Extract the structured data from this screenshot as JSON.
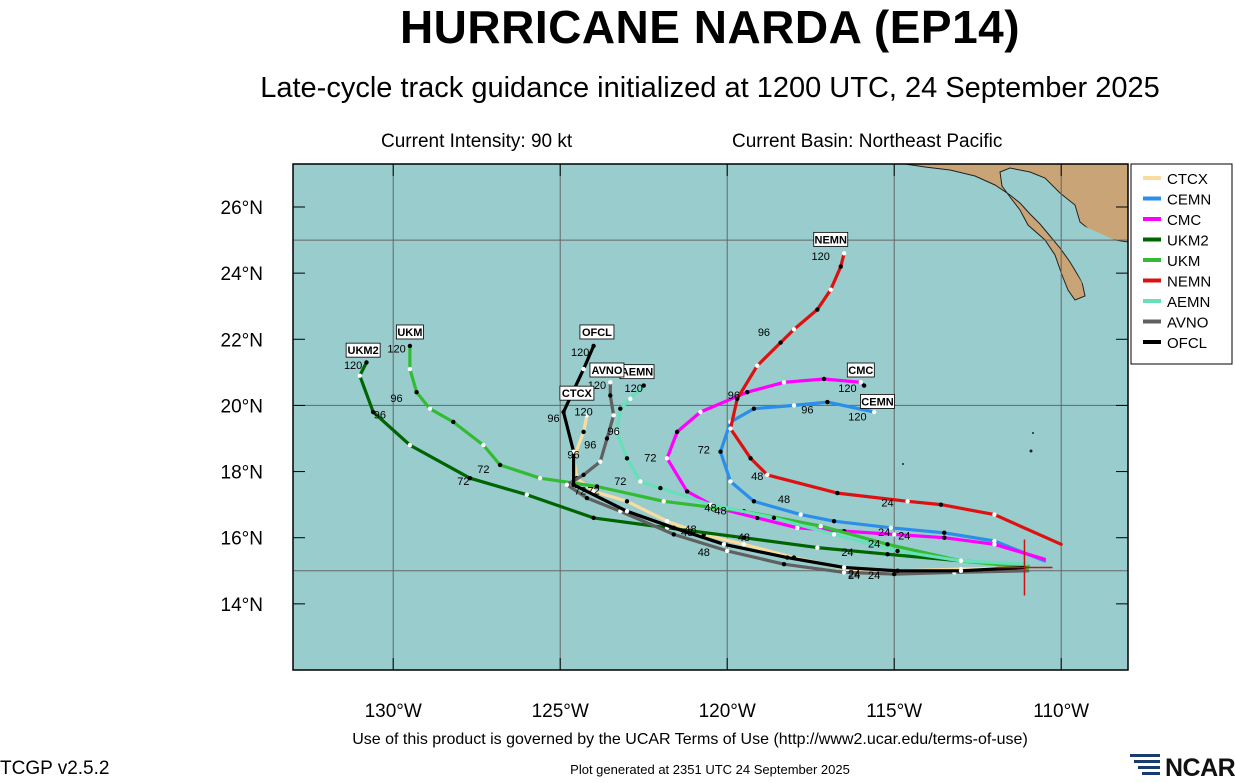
{
  "header": {
    "title": "HURRICANE NARDA (EP14)",
    "subtitle": "Late-cycle track guidance initialized at 1200 UTC, 24 September 2025",
    "intensity": "Current Intensity: 90 kt",
    "basin": "Current Basin: Northeast Pacific"
  },
  "footer": {
    "terms": "Use of this product is governed by the UCAR Terms of Use (http://www2.ucar.edu/terms-of-use)",
    "version": "TCGP v2.5.2",
    "generated": "Plot generated at 2351 UTC   24 September 2025",
    "logo_text": "NCAR"
  },
  "chart_data": {
    "type": "map",
    "lon_range": [
      -133,
      -108
    ],
    "lat_range": [
      12,
      27.3
    ],
    "x_ticks": [
      {
        "lon": -130,
        "label": "130°W"
      },
      {
        "lon": -125,
        "label": "125°W"
      },
      {
        "lon": -120,
        "label": "120°W"
      },
      {
        "lon": -115,
        "label": "115°W"
      },
      {
        "lon": -110,
        "label": "110°W"
      }
    ],
    "y_ticks": [
      {
        "lat": 14,
        "label": "14°N"
      },
      {
        "lat": 16,
        "label": "16°N"
      },
      {
        "lat": 18,
        "label": "18°N"
      },
      {
        "lat": 20,
        "label": "20°N"
      },
      {
        "lat": 22,
        "label": "22°N"
      },
      {
        "lat": 24,
        "label": "24°N"
      },
      {
        "lat": 26,
        "label": "26°N"
      }
    ],
    "grid_lons": [
      -130,
      -125,
      -120,
      -115,
      -110
    ],
    "grid_lats": [
      15,
      20,
      25
    ],
    "grid": true,
    "ocean_color": "#99cccc",
    "land_color": "#c8a476",
    "legend_placement": "right",
    "current_position": {
      "lon": -111.1,
      "lat": 15.1
    },
    "series": [
      {
        "name": "CTCX",
        "color": "#fadca0",
        "points": [
          [
            -111.1,
            15.1
          ],
          [
            -113,
            15.05
          ],
          [
            -114.9,
            15
          ],
          [
            -116.4,
            15.05
          ],
          [
            -118,
            15.4
          ],
          [
            -119.5,
            15.8
          ],
          [
            -120.7,
            16.1
          ],
          [
            -121.8,
            16.5
          ],
          [
            -123,
            17.1
          ],
          [
            -124,
            17.4
          ],
          [
            -124.5,
            17.8
          ],
          [
            -124.6,
            18.4
          ],
          [
            -124.3,
            19.2
          ],
          [
            -124.2,
            19.7
          ]
        ],
        "hours": [
          {
            "t": "48",
            "lon": -119.5,
            "lat": 15.9
          },
          {
            "t": "72",
            "lon": -124,
            "lat": 17.3
          },
          {
            "t": "96",
            "lon": -124.6,
            "lat": 18.4
          },
          {
            "t": "120",
            "lon": -124.3,
            "lat": 19.7
          }
        ],
        "label": "CTCX",
        "label_pos": {
          "lon": -124.5,
          "lat": 20.25
        }
      },
      {
        "name": "CEMN",
        "color": "#2b8ee8",
        "points": [
          [
            -110.5,
            15.3
          ],
          [
            -112,
            15.9
          ],
          [
            -113.5,
            16.15
          ],
          [
            -115.1,
            16.3
          ],
          [
            -116.8,
            16.5
          ],
          [
            -117.8,
            16.7
          ],
          [
            -119.2,
            17.1
          ],
          [
            -119.9,
            17.7
          ],
          [
            -120.2,
            18.6
          ],
          [
            -119.9,
            19.5
          ],
          [
            -119.2,
            19.9
          ],
          [
            -118,
            20
          ],
          [
            -117,
            20.1
          ],
          [
            -115.6,
            19.8
          ]
        ],
        "hours": [
          {
            "t": "24",
            "lon": -115.3,
            "lat": 16.05
          },
          {
            "t": "48",
            "lon": -118.3,
            "lat": 17.05
          },
          {
            "t": "72",
            "lon": -120.7,
            "lat": 18.55
          },
          {
            "t": "96",
            "lon": -117.6,
            "lat": 19.75
          },
          {
            "t": "120",
            "lon": -116.1,
            "lat": 19.55
          }
        ],
        "label": "CEMN",
        "label_pos": {
          "lon": -115.5,
          "lat": 20.0
        }
      },
      {
        "name": "CMC",
        "color": "#ff00ff",
        "points": [
          [
            -110.5,
            15.35
          ],
          [
            -112,
            15.8
          ],
          [
            -113.5,
            16
          ],
          [
            -115,
            16.1
          ],
          [
            -116.5,
            16.2
          ],
          [
            -117.9,
            16.3
          ],
          [
            -119.1,
            16.6
          ],
          [
            -120.3,
            16.9
          ],
          [
            -121.2,
            17.4
          ],
          [
            -121.8,
            18.4
          ],
          [
            -121.5,
            19.2
          ],
          [
            -120.8,
            19.8
          ],
          [
            -119.4,
            20.4
          ],
          [
            -118.3,
            20.7
          ],
          [
            -117.1,
            20.8
          ],
          [
            -116,
            20.7
          ],
          [
            -115.9,
            20.6
          ]
        ],
        "hours": [
          {
            "t": "24",
            "lon": -114.7,
            "lat": 15.95
          },
          {
            "t": "48",
            "lon": -120.5,
            "lat": 16.8
          },
          {
            "t": "72",
            "lon": -122.3,
            "lat": 18.3
          },
          {
            "t": "96",
            "lon": -119.8,
            "lat": 20.2
          },
          {
            "t": "120",
            "lon": -116.4,
            "lat": 20.4
          }
        ],
        "label": "CMC",
        "label_pos": {
          "lon": -116.0,
          "lat": 20.95
        }
      },
      {
        "name": "UKM2",
        "color": "#006400",
        "points": [
          [
            -111,
            15.15
          ],
          [
            -113,
            15.3
          ],
          [
            -115.2,
            15.5
          ],
          [
            -117.3,
            15.7
          ],
          [
            -119.5,
            16
          ],
          [
            -121.8,
            16.3
          ],
          [
            -124,
            16.6
          ],
          [
            -126,
            17.3
          ],
          [
            -127.7,
            17.8
          ],
          [
            -129.5,
            18.8
          ],
          [
            -130.6,
            19.8
          ],
          [
            -131,
            20.9
          ],
          [
            -130.8,
            21.3
          ]
        ],
        "hours": [
          {
            "t": "24",
            "lon": -116.4,
            "lat": 15.45
          },
          {
            "t": "48",
            "lon": -121.2,
            "lat": 16.05
          },
          {
            "t": "72",
            "lon": -127.9,
            "lat": 17.6
          },
          {
            "t": "96",
            "lon": -130.4,
            "lat": 19.6
          },
          {
            "t": "120",
            "lon": -131.2,
            "lat": 21.1
          }
        ],
        "label": "UKM2",
        "label_pos": {
          "lon": -130.9,
          "lat": 21.55
        }
      },
      {
        "name": "UKM",
        "color": "#33bb33",
        "points": [
          [
            -111,
            15.1
          ],
          [
            -113,
            15.3
          ],
          [
            -115.2,
            15.8
          ],
          [
            -117.2,
            16.35
          ],
          [
            -119.5,
            16.8
          ],
          [
            -121.9,
            17.1
          ],
          [
            -123.9,
            17.55
          ],
          [
            -125.6,
            17.8
          ],
          [
            -126.8,
            18.2
          ],
          [
            -127.3,
            18.8
          ],
          [
            -128.2,
            19.5
          ],
          [
            -128.9,
            19.9
          ],
          [
            -129.3,
            20.4
          ],
          [
            -129.5,
            21.1
          ],
          [
            -129.5,
            21.8
          ]
        ],
        "hours": [
          {
            "t": "24",
            "lon": -115.6,
            "lat": 15.7
          },
          {
            "t": "48",
            "lon": -120.2,
            "lat": 16.7
          },
          {
            "t": "72",
            "lon": -127.3,
            "lat": 17.95
          },
          {
            "t": "96",
            "lon": -129.9,
            "lat": 20.1
          },
          {
            "t": "120",
            "lon": -129.9,
            "lat": 21.6
          }
        ],
        "label": "UKM",
        "label_pos": {
          "lon": -129.5,
          "lat": 22.1
        }
      },
      {
        "name": "NEMN",
        "color": "#dd1111",
        "points": [
          [
            -110,
            15.8
          ],
          [
            -112,
            16.7
          ],
          [
            -113.6,
            17
          ],
          [
            -114.6,
            17.1
          ],
          [
            -116.7,
            17.35
          ],
          [
            -118.8,
            17.9
          ],
          [
            -119.3,
            18.4
          ],
          [
            -119.9,
            19.3
          ],
          [
            -119.7,
            20.2
          ],
          [
            -119.1,
            21.2
          ],
          [
            -118.4,
            21.9
          ],
          [
            -118,
            22.3
          ],
          [
            -117.3,
            22.9
          ],
          [
            -116.9,
            23.5
          ],
          [
            -116.6,
            24.2
          ],
          [
            -116.5,
            24.6
          ]
        ],
        "hours": [
          {
            "t": "24",
            "lon": -115.2,
            "lat": 16.95
          },
          {
            "t": "48",
            "lon": -119.1,
            "lat": 17.75
          },
          {
            "t": "96",
            "lon": -118.9,
            "lat": 22.1
          },
          {
            "t": "120",
            "lon": -117.2,
            "lat": 24.4
          }
        ],
        "label": "NEMN",
        "label_pos": {
          "lon": -116.9,
          "lat": 24.9
        }
      },
      {
        "name": "AEMN",
        "color": "#66e0b8",
        "points": [
          [
            -111,
            15.2
          ],
          [
            -113,
            15.3
          ],
          [
            -114.9,
            15.6
          ],
          [
            -116.8,
            16.1
          ],
          [
            -118.6,
            16.6
          ],
          [
            -120.5,
            17
          ],
          [
            -122,
            17.5
          ],
          [
            -122.6,
            17.7
          ],
          [
            -123,
            18.4
          ],
          [
            -123.3,
            19.2
          ],
          [
            -123.2,
            19.9
          ],
          [
            -122.9,
            20.2
          ],
          [
            -122.5,
            20.6
          ]
        ],
        "hours": [
          {
            "t": "72",
            "lon": -123.2,
            "lat": 17.6
          },
          {
            "t": "96",
            "lon": -123.4,
            "lat": 19.1
          },
          {
            "t": "120",
            "lon": -122.8,
            "lat": 20.4
          }
        ],
        "label": "AEMN",
        "label_pos": {
          "lon": -122.7,
          "lat": 20.9
        }
      },
      {
        "name": "AVNO",
        "color": "#606060",
        "points": [
          [
            -111,
            15
          ],
          [
            -113.2,
            14.95
          ],
          [
            -115,
            14.9
          ],
          [
            -116.5,
            14.95
          ],
          [
            -118.3,
            15.2
          ],
          [
            -120,
            15.6
          ],
          [
            -121.6,
            16.1
          ],
          [
            -123.2,
            16.8
          ],
          [
            -124.2,
            17.2
          ],
          [
            -124.8,
            17.6
          ],
          [
            -124.3,
            17.9
          ],
          [
            -123.8,
            18.3
          ],
          [
            -123.6,
            19
          ],
          [
            -123.4,
            19.7
          ],
          [
            -123.5,
            20.3
          ],
          [
            -123.5,
            20.7
          ]
        ],
        "hours": [
          {
            "t": "24",
            "lon": -116.2,
            "lat": 14.8
          },
          {
            "t": "48",
            "lon": -120.7,
            "lat": 15.45
          },
          {
            "t": "96",
            "lon": -124.1,
            "lat": 18.7
          },
          {
            "t": "120",
            "lon": -123.9,
            "lat": 20.5
          }
        ],
        "label": "AVNO",
        "label_pos": {
          "lon": -123.6,
          "lat": 20.95
        }
      },
      {
        "name": "OFCL",
        "color": "#000000",
        "points": [
          [
            -111.1,
            15.1
          ],
          [
            -113,
            15
          ],
          [
            -114.9,
            15
          ],
          [
            -116.5,
            15.1
          ],
          [
            -118.2,
            15.4
          ],
          [
            -120.1,
            15.8
          ],
          [
            -121.6,
            16.3
          ],
          [
            -123,
            16.8
          ],
          [
            -124.6,
            17.6
          ],
          [
            -124.6,
            18.6
          ],
          [
            -124.9,
            19.8
          ],
          [
            -124.3,
            21.1
          ],
          [
            -124,
            21.8
          ]
        ],
        "hours": [
          {
            "t": "24",
            "lon": -116.2,
            "lat": 14.75
          },
          {
            "t": "24",
            "lon": -115.6,
            "lat": 14.75
          },
          {
            "t": "48",
            "lon": -121.1,
            "lat": 16.15
          },
          {
            "t": "72",
            "lon": -124.4,
            "lat": 17.3
          },
          {
            "t": "96",
            "lon": -125.2,
            "lat": 19.5
          },
          {
            "t": "120",
            "lon": -124.4,
            "lat": 21.5
          }
        ],
        "label": "OFCL",
        "label_pos": {
          "lon": -123.9,
          "lat": 22.1
        }
      }
    ],
    "legend": [
      "CTCX",
      "CEMN",
      "CMC",
      "UKM2",
      "UKM",
      "NEMN",
      "AEMN",
      "AVNO",
      "OFCL"
    ]
  }
}
